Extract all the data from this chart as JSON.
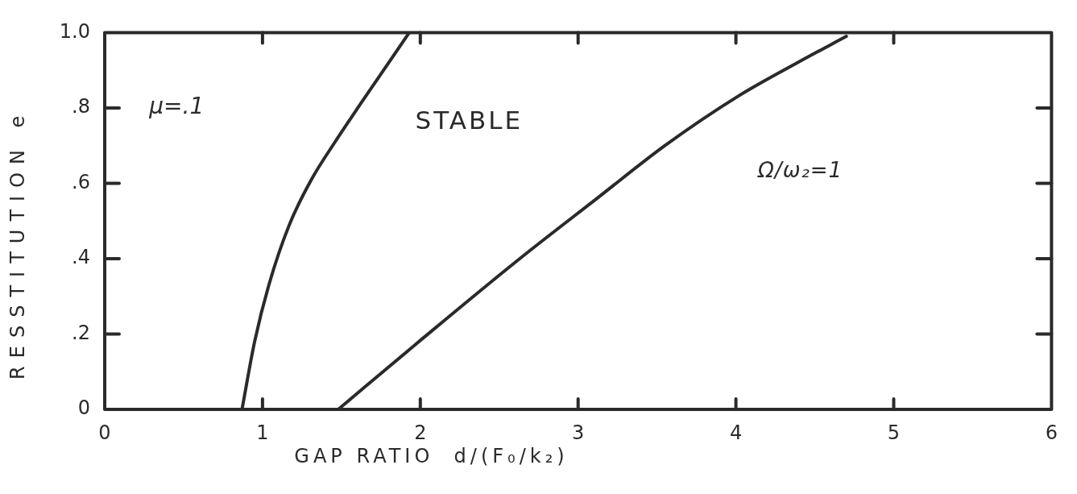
{
  "chart_data": {
    "type": "line",
    "xlabel": "GAP RATIO  d/(F₀/k₂)",
    "ylabel": "RESSTITUTION e",
    "annotations": [
      "μ=.1",
      "STABLE",
      "Ω/ω₂=1"
    ],
    "series": [
      {
        "color": "#2a2a2a",
        "x": [
          0.87,
          0.95,
          1.04,
          1.17,
          1.31,
          1.46,
          1.62,
          1.93
        ],
        "values": [
          0,
          0.18,
          0.33,
          0.49,
          0.61,
          0.71,
          0.81,
          1
        ]
      },
      {
        "color": "#2a2a2a",
        "x": [
          1.48,
          2.02,
          2.63,
          3.12,
          3.55,
          4.01,
          4.39,
          4.7
        ],
        "values": [
          0,
          0.19,
          0.4,
          0.56,
          0.7,
          0.83,
          0.92,
          0.99
        ]
      }
    ],
    "xlim": [
      0,
      6
    ],
    "ylim": [
      0,
      1
    ],
    "xticks": [
      0,
      1,
      2,
      3,
      4,
      5,
      6
    ],
    "yticks": [
      0,
      {
        "value": 0.2,
        "label": ".2"
      },
      {
        "value": 0.4,
        "label": ".4"
      },
      {
        "value": 0.6,
        "label": ".6"
      },
      {
        "value": 0.8,
        "label": ".8"
      },
      {
        "value": 1,
        "label": "1.0"
      }
    ],
    "marker": "none",
    "line_style": "solid"
  }
}
